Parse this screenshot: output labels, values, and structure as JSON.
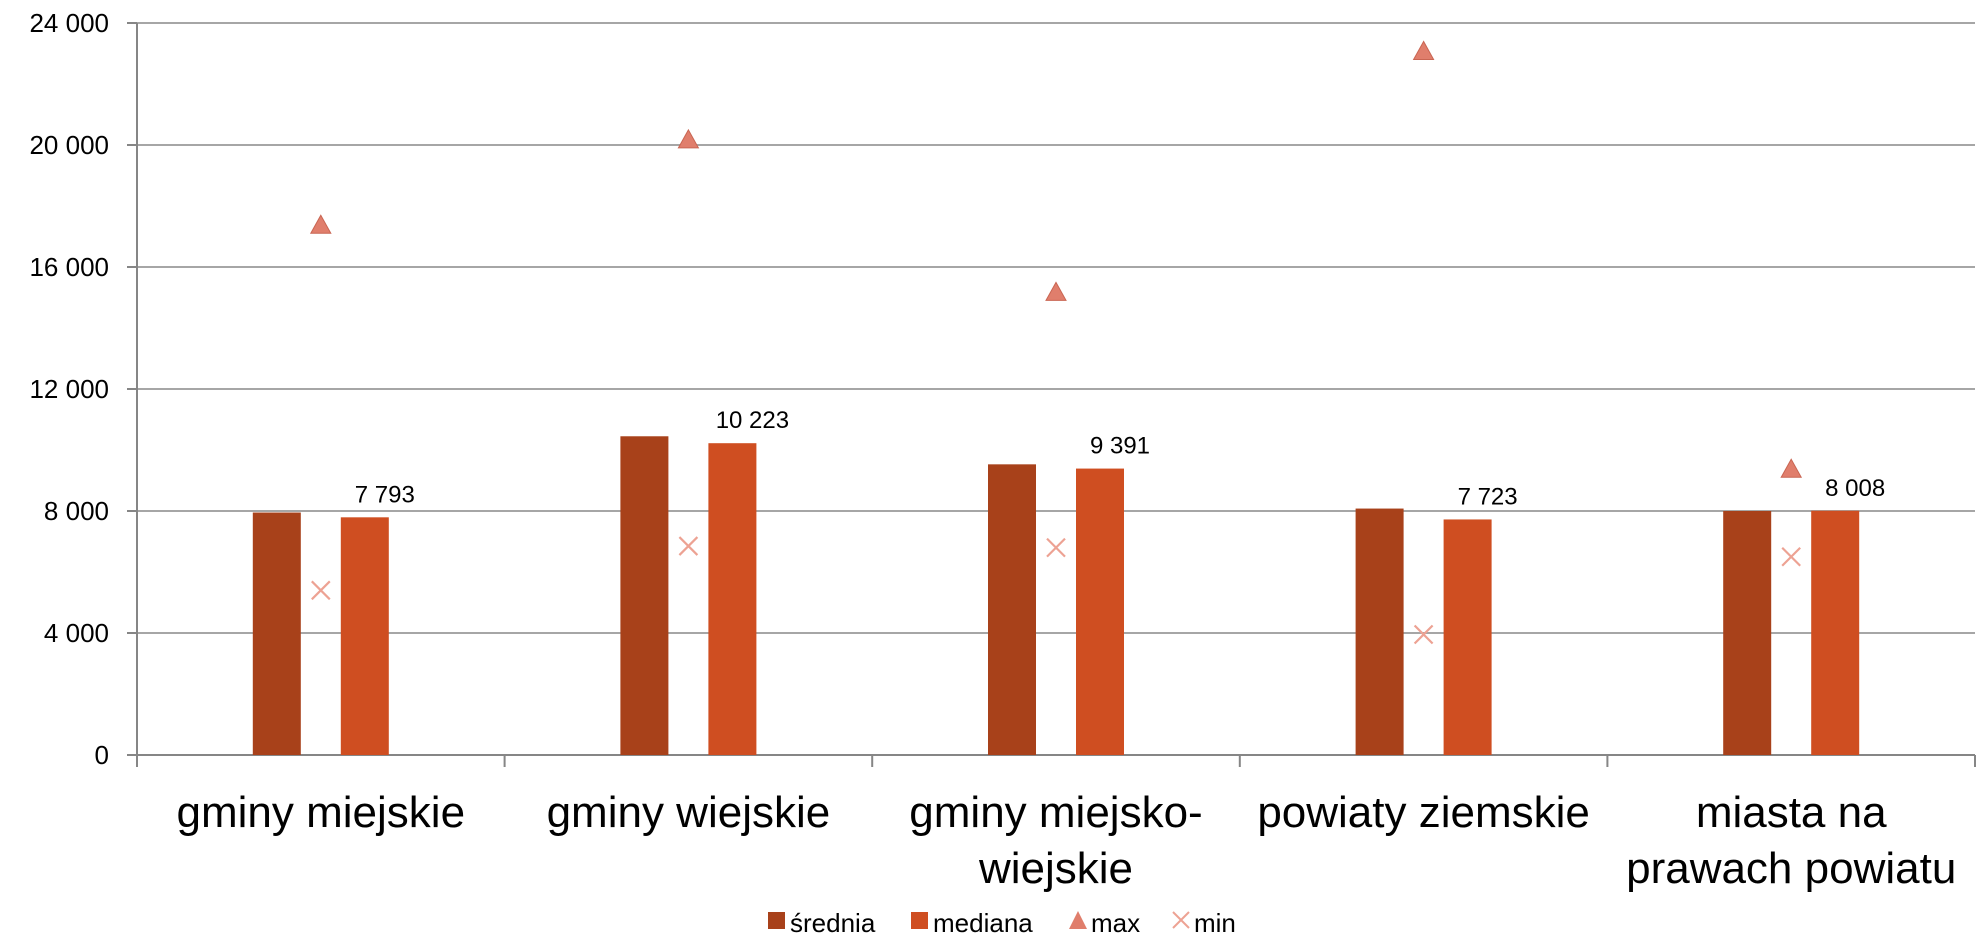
{
  "chart_data": {
    "type": "bar",
    "categories": [
      [
        "gminy miejskie"
      ],
      [
        "gminy wiejskie"
      ],
      [
        "gminy miejsko-",
        "wiejskie"
      ],
      [
        "powiaty ziemskie"
      ],
      [
        "miasta na",
        "prawach powiatu"
      ]
    ],
    "series": [
      {
        "name": "średnia",
        "kind": "bar",
        "color": "#A8411A",
        "values": [
          7950,
          10450,
          9530,
          8080,
          8000
        ]
      },
      {
        "name": "mediana",
        "kind": "bar",
        "color": "#CF4E21",
        "values": [
          7793,
          10223,
          9391,
          7723,
          8008
        ],
        "labels": [
          "7 793",
          "10 223",
          "9 391",
          "7 723",
          "8 008"
        ]
      },
      {
        "name": "max",
        "kind": "marker-triangle",
        "color": "#E07E6C",
        "values": [
          17400,
          20200,
          15200,
          23100,
          9400
        ]
      },
      {
        "name": "min",
        "kind": "marker-x",
        "color": "#EDA293",
        "values": [
          5400,
          6850,
          6800,
          3950,
          6500
        ]
      }
    ],
    "ylim": [
      0,
      24000
    ],
    "yticks": [
      0,
      4000,
      8000,
      12000,
      16000,
      20000,
      24000
    ],
    "ytick_labels": [
      "0",
      "4 000",
      "8 000",
      "12 000",
      "16 000",
      "20 000",
      "24 000"
    ],
    "grid": true,
    "legend": "bottom-center",
    "gridColor": "#A6A6A6",
    "axisColor": "#868686"
  }
}
